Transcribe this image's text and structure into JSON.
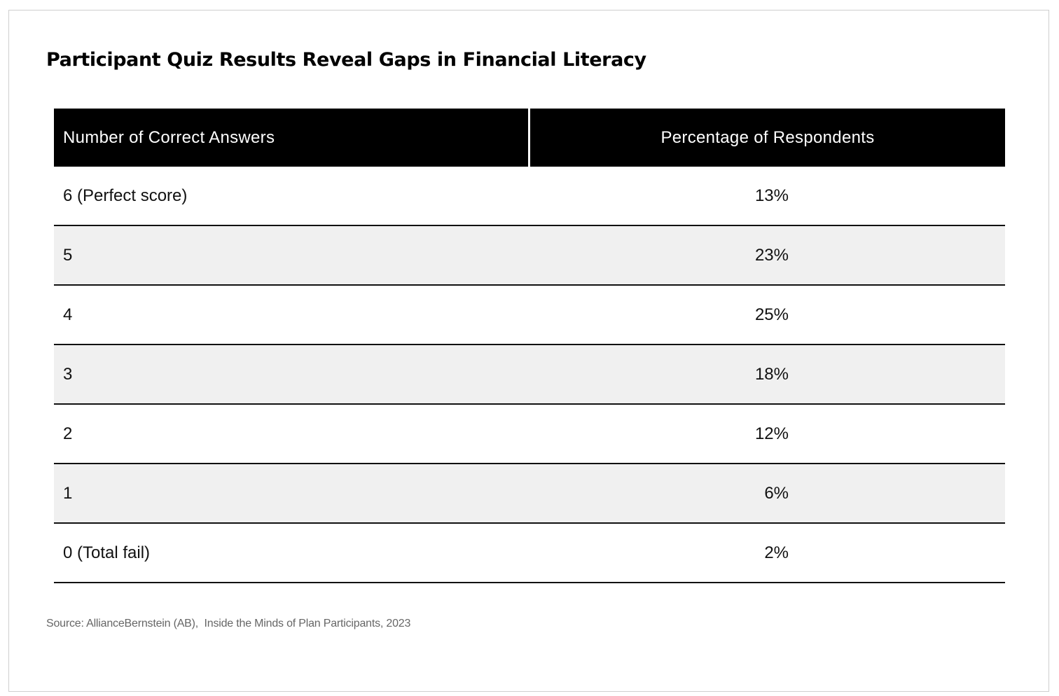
{
  "title": "Participant Quiz Results Reveal Gaps in Financial Literacy",
  "source": "Source: AllianceBernstein (AB),  Inside the Minds of Plan Participants, 2023",
  "chart_data": {
    "type": "table",
    "title": "Participant Quiz Results Reveal Gaps in Financial Literacy",
    "columns": [
      "Number of Correct Answers",
      "Percentage of Respondents"
    ],
    "rows": [
      {
        "answers": "6 (Perfect score)",
        "percent": "13%"
      },
      {
        "answers": "5",
        "percent": "23%"
      },
      {
        "answers": "4",
        "percent": "25%"
      },
      {
        "answers": "3",
        "percent": "18%"
      },
      {
        "answers": "2",
        "percent": "12%"
      },
      {
        "answers": "1",
        "percent": "6%"
      },
      {
        "answers": "0 (Total fail)",
        "percent": "2%"
      }
    ]
  }
}
